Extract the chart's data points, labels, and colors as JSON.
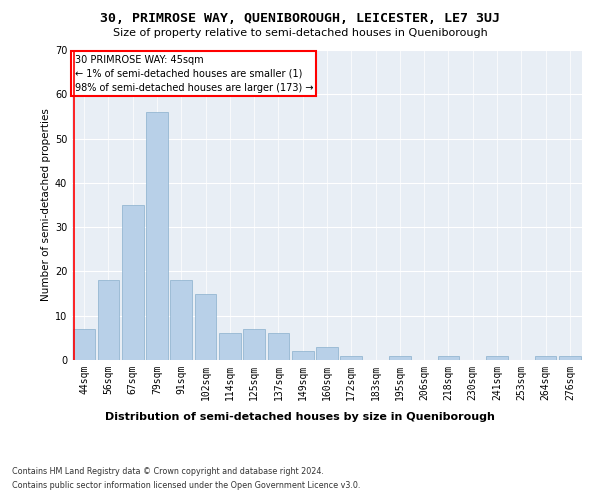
{
  "title": "30, PRIMROSE WAY, QUENIBOROUGH, LEICESTER, LE7 3UJ",
  "subtitle": "Size of property relative to semi-detached houses in Queniborough",
  "xlabel": "Distribution of semi-detached houses by size in Queniborough",
  "ylabel": "Number of semi-detached properties",
  "footer_line1": "Contains HM Land Registry data © Crown copyright and database right 2024.",
  "footer_line2": "Contains public sector information licensed under the Open Government Licence v3.0.",
  "annotation_title": "30 PRIMROSE WAY: 45sqm",
  "annotation_line1": "← 1% of semi-detached houses are smaller (1)",
  "annotation_line2": "98% of semi-detached houses are larger (173) →",
  "bar_color": "#b8d0e8",
  "bar_edge_color": "#8ab0cc",
  "bg_color": "#e8eef5",
  "categories": [
    "44sqm",
    "56sqm",
    "67sqm",
    "79sqm",
    "91sqm",
    "102sqm",
    "114sqm",
    "125sqm",
    "137sqm",
    "149sqm",
    "160sqm",
    "172sqm",
    "183sqm",
    "195sqm",
    "206sqm",
    "218sqm",
    "230sqm",
    "241sqm",
    "253sqm",
    "264sqm",
    "276sqm"
  ],
  "values": [
    7,
    18,
    35,
    56,
    18,
    15,
    6,
    7,
    6,
    2,
    3,
    1,
    0,
    1,
    0,
    1,
    0,
    1,
    0,
    1,
    1
  ],
  "ylim": [
    0,
    70
  ],
  "yticks": [
    0,
    10,
    20,
    30,
    40,
    50,
    60,
    70
  ],
  "title_fontsize": 9.5,
  "subtitle_fontsize": 8,
  "ylabel_fontsize": 7.5,
  "xlabel_fontsize": 8,
  "tick_fontsize": 7,
  "annotation_fontsize": 7,
  "footer_fontsize": 5.8
}
